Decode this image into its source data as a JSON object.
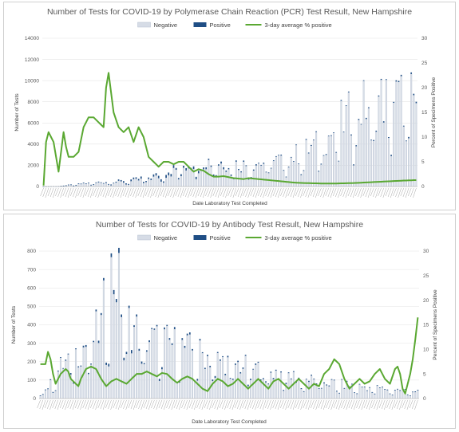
{
  "chart_data": [
    {
      "type": "bar",
      "title": "Number of Tests for COVID-19 by Polymerase Chain Reaction (PCR) Test Result, New Hampshire",
      "xlabel": "Date Laboratory Test Completed",
      "ylabel": "Number of Tests",
      "y2label": "Percent of Specimens Positive",
      "ylim": [
        0,
        14000
      ],
      "yticks": [
        "0",
        "2000",
        "4000",
        "6000",
        "8000",
        "10000",
        "12000",
        "14000"
      ],
      "y2lim": [
        0,
        30
      ],
      "y2ticks": [
        "0",
        "5",
        "10",
        "15",
        "20",
        "25",
        "30"
      ],
      "legend": [
        "Negative",
        "Positive",
        "3-day average % positive"
      ],
      "legend_position": "top-center",
      "grid": true,
      "colors": {
        "negative": "#d6dce6",
        "negative_edge": "#b4bfcf",
        "positive": "#1f4e85",
        "line": "#5aa832"
      },
      "bars": {
        "count": 150,
        "negative_knots": [
          [
            0,
            0
          ],
          [
            5,
            40
          ],
          [
            10,
            120
          ],
          [
            15,
            250
          ],
          [
            20,
            350
          ],
          [
            25,
            400
          ],
          [
            30,
            420
          ],
          [
            35,
            500
          ],
          [
            40,
            700
          ],
          [
            45,
            900
          ],
          [
            50,
            1300
          ],
          [
            55,
            1800
          ],
          [
            60,
            2300
          ],
          [
            65,
            2500
          ],
          [
            70,
            2300
          ],
          [
            75,
            2200
          ],
          [
            80,
            2100
          ],
          [
            85,
            2300
          ],
          [
            90,
            2400
          ],
          [
            95,
            2600
          ],
          [
            100,
            3000
          ],
          [
            105,
            3600
          ],
          [
            110,
            4200
          ],
          [
            115,
            5200
          ],
          [
            120,
            6500
          ],
          [
            125,
            7600
          ],
          [
            130,
            8200
          ],
          [
            135,
            8600
          ],
          [
            140,
            8700
          ],
          [
            145,
            8600
          ],
          [
            149,
            8400
          ]
        ],
        "positive_knots": [
          [
            0,
            5
          ],
          [
            10,
            20
          ],
          [
            20,
            60
          ],
          [
            30,
            100
          ],
          [
            40,
            150
          ],
          [
            50,
            200
          ],
          [
            60,
            180
          ],
          [
            70,
            150
          ],
          [
            80,
            100
          ],
          [
            90,
            70
          ],
          [
            100,
            60
          ],
          [
            110,
            60
          ],
          [
            120,
            70
          ],
          [
            130,
            80
          ],
          [
            140,
            100
          ],
          [
            149,
            110
          ]
        ]
      },
      "line_knots": [
        [
          0,
          0.2
        ],
        [
          1,
          9
        ],
        [
          2,
          11
        ],
        [
          3,
          10
        ],
        [
          4,
          9
        ],
        [
          5,
          6
        ],
        [
          6,
          3
        ],
        [
          7,
          7
        ],
        [
          8,
          11
        ],
        [
          9,
          8
        ],
        [
          10,
          6
        ],
        [
          12,
          6
        ],
        [
          14,
          7
        ],
        [
          16,
          12
        ],
        [
          18,
          14
        ],
        [
          20,
          14
        ],
        [
          22,
          13
        ],
        [
          24,
          12
        ],
        [
          25,
          20
        ],
        [
          26,
          23
        ],
        [
          27,
          19
        ],
        [
          28,
          15
        ],
        [
          30,
          12
        ],
        [
          32,
          11
        ],
        [
          34,
          12
        ],
        [
          36,
          9
        ],
        [
          38,
          12
        ],
        [
          39,
          11
        ],
        [
          40,
          10
        ],
        [
          42,
          6
        ],
        [
          44,
          5
        ],
        [
          46,
          4
        ],
        [
          48,
          5
        ],
        [
          50,
          5
        ],
        [
          52,
          4.5
        ],
        [
          54,
          5
        ],
        [
          56,
          5
        ],
        [
          58,
          4
        ],
        [
          60,
          3
        ],
        [
          62,
          3.5
        ],
        [
          64,
          3.2
        ],
        [
          66,
          2.5
        ],
        [
          68,
          2
        ],
        [
          70,
          2
        ],
        [
          72,
          2.1
        ],
        [
          74,
          1.9
        ],
        [
          76,
          1.7
        ],
        [
          78,
          1.6
        ],
        [
          80,
          1.5
        ],
        [
          82,
          1.7
        ],
        [
          84,
          1.6
        ],
        [
          86,
          1.5
        ],
        [
          88,
          1.4
        ],
        [
          90,
          1.3
        ],
        [
          92,
          1.2
        ],
        [
          94,
          1.1
        ],
        [
          96,
          1.0
        ],
        [
          98,
          0.9
        ],
        [
          100,
          0.8
        ],
        [
          104,
          0.7
        ],
        [
          108,
          0.65
        ],
        [
          112,
          0.6
        ],
        [
          116,
          0.6
        ],
        [
          120,
          0.65
        ],
        [
          124,
          0.7
        ],
        [
          128,
          0.8
        ],
        [
          132,
          0.9
        ],
        [
          136,
          1.0
        ],
        [
          140,
          1.1
        ],
        [
          144,
          1.2
        ],
        [
          149,
          1.3
        ]
      ]
    },
    {
      "type": "bar",
      "title": "Number of Tests for COVID-19 by Antibody Test Result, New Hampshire",
      "xlabel": "Date Laboratory Test Completed",
      "ylabel": "Number of Tests",
      "y2label": "Percent of Specimens Positive",
      "ylim": [
        0,
        800
      ],
      "yticks": [
        "0",
        "100",
        "200",
        "300",
        "400",
        "500",
        "600",
        "700",
        "800"
      ],
      "y2lim": [
        0,
        30
      ],
      "y2ticks": [
        "0",
        "5",
        "10",
        "15",
        "20",
        "25",
        "30"
      ],
      "legend": [
        "Negative",
        "Positive",
        "3-day average % positive"
      ],
      "legend_position": "top-center",
      "grid": true,
      "colors": {
        "negative": "#d6dce6",
        "negative_edge": "#b4bfcf",
        "positive": "#1f4e85",
        "line": "#5aa832"
      },
      "bars": {
        "count": 150,
        "negative_knots": [
          [
            0,
            20
          ],
          [
            4,
            80
          ],
          [
            8,
            180
          ],
          [
            12,
            230
          ],
          [
            16,
            280
          ],
          [
            20,
            330
          ],
          [
            24,
            400
          ],
          [
            26,
            600
          ],
          [
            28,
            690
          ],
          [
            30,
            700
          ],
          [
            32,
            560
          ],
          [
            34,
            460
          ],
          [
            36,
            400
          ],
          [
            38,
            380
          ],
          [
            40,
            360
          ],
          [
            44,
            330
          ],
          [
            48,
            320
          ],
          [
            52,
            310
          ],
          [
            56,
            290
          ],
          [
            60,
            270
          ],
          [
            64,
            250
          ],
          [
            68,
            230
          ],
          [
            72,
            210
          ],
          [
            76,
            195
          ],
          [
            80,
            185
          ],
          [
            84,
            170
          ],
          [
            88,
            160
          ],
          [
            92,
            150
          ],
          [
            96,
            140
          ],
          [
            100,
            125
          ],
          [
            104,
            110
          ],
          [
            108,
            100
          ],
          [
            112,
            92
          ],
          [
            116,
            85
          ],
          [
            120,
            78
          ],
          [
            124,
            72
          ],
          [
            128,
            65
          ],
          [
            132,
            60
          ],
          [
            136,
            55
          ],
          [
            140,
            50
          ],
          [
            144,
            45
          ],
          [
            149,
            40
          ]
        ],
        "positive_knots": [
          [
            0,
            2
          ],
          [
            20,
            8
          ],
          [
            26,
            20
          ],
          [
            30,
            25
          ],
          [
            34,
            15
          ],
          [
            40,
            10
          ],
          [
            60,
            8
          ],
          [
            80,
            6
          ],
          [
            100,
            5
          ],
          [
            120,
            3
          ],
          [
            149,
            3
          ]
        ]
      },
      "line_knots": [
        [
          0,
          7
        ],
        [
          2,
          7
        ],
        [
          3,
          9.5
        ],
        [
          4,
          8
        ],
        [
          5,
          5
        ],
        [
          6,
          3
        ],
        [
          8,
          5
        ],
        [
          10,
          6
        ],
        [
          11,
          5.5
        ],
        [
          12,
          4
        ],
        [
          14,
          3
        ],
        [
          15,
          2.5
        ],
        [
          16,
          4
        ],
        [
          18,
          6
        ],
        [
          20,
          6.5
        ],
        [
          22,
          6
        ],
        [
          24,
          4
        ],
        [
          26,
          2.5
        ],
        [
          28,
          3.5
        ],
        [
          30,
          4
        ],
        [
          32,
          3.5
        ],
        [
          34,
          3
        ],
        [
          36,
          4
        ],
        [
          38,
          5
        ],
        [
          40,
          5
        ],
        [
          42,
          5.5
        ],
        [
          44,
          5
        ],
        [
          46,
          4.5
        ],
        [
          48,
          5.2
        ],
        [
          50,
          5
        ],
        [
          52,
          4
        ],
        [
          54,
          3.2
        ],
        [
          56,
          4
        ],
        [
          58,
          4.5
        ],
        [
          60,
          4
        ],
        [
          62,
          3
        ],
        [
          64,
          2
        ],
        [
          66,
          1.5
        ],
        [
          68,
          3
        ],
        [
          70,
          4
        ],
        [
          72,
          3.5
        ],
        [
          74,
          2.5
        ],
        [
          76,
          3
        ],
        [
          78,
          4
        ],
        [
          80,
          3
        ],
        [
          82,
          2
        ],
        [
          84,
          3
        ],
        [
          86,
          4
        ],
        [
          88,
          3
        ],
        [
          90,
          2
        ],
        [
          92,
          3.5
        ],
        [
          94,
          4
        ],
        [
          96,
          3
        ],
        [
          98,
          2
        ],
        [
          100,
          3
        ],
        [
          102,
          4
        ],
        [
          104,
          3
        ],
        [
          106,
          2
        ],
        [
          108,
          3
        ],
        [
          110,
          2.5
        ],
        [
          112,
          5
        ],
        [
          114,
          6
        ],
        [
          116,
          8
        ],
        [
          118,
          7
        ],
        [
          120,
          4
        ],
        [
          122,
          2
        ],
        [
          124,
          3
        ],
        [
          126,
          4
        ],
        [
          128,
          3
        ],
        [
          130,
          3.5
        ],
        [
          132,
          5
        ],
        [
          134,
          6
        ],
        [
          136,
          4
        ],
        [
          138,
          3
        ],
        [
          140,
          6
        ],
        [
          141,
          6.5
        ],
        [
          142,
          5
        ],
        [
          143,
          2
        ],
        [
          144,
          1
        ],
        [
          145,
          3
        ],
        [
          146,
          5
        ],
        [
          147,
          8
        ],
        [
          148,
          12
        ],
        [
          149,
          16.5
        ]
      ]
    }
  ]
}
